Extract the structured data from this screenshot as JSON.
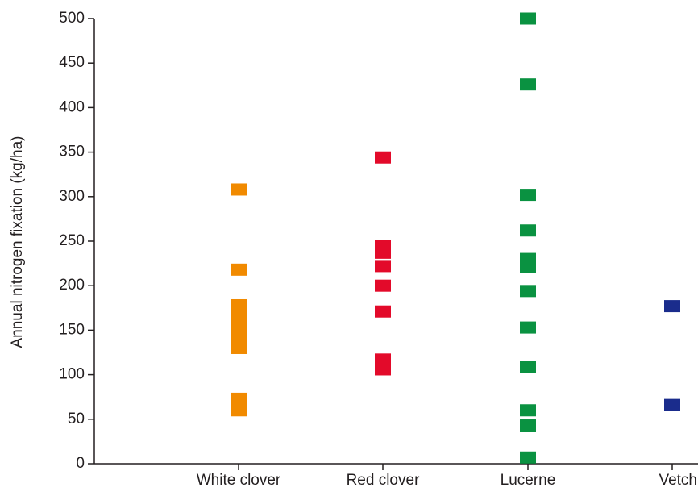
{
  "chart_data": {
    "type": "scatter",
    "title": "",
    "xlabel": "",
    "ylabel": "Annual nitrogen fixation (kg/ha)",
    "ylim": [
      0,
      500
    ],
    "yticks": [
      "0",
      "50",
      "100",
      "150",
      "200",
      "250",
      "300",
      "350",
      "400",
      "450",
      "500"
    ],
    "categories": [
      "White clover",
      "Red clover",
      "Lucerne",
      "Vetch"
    ],
    "grid": false,
    "legend": "none",
    "series": [
      {
        "category": "White clover",
        "color": "#f18a00",
        "values": [
          308,
          218,
          178,
          170,
          162,
          154,
          146,
          138,
          130,
          73,
          60
        ]
      },
      {
        "category": "Red clover",
        "color": "#e30a2a",
        "values": [
          344,
          245,
          237,
          222,
          200,
          171,
          117,
          106
        ]
      },
      {
        "category": "Lucerne",
        "color": "#0a9241",
        "values": [
          500,
          426,
          302,
          262,
          230,
          221,
          194,
          153,
          109,
          60,
          43,
          7
        ]
      },
      {
        "category": "Vetch",
        "color": "#1a2c8c",
        "values": [
          177,
          66
        ]
      }
    ]
  }
}
